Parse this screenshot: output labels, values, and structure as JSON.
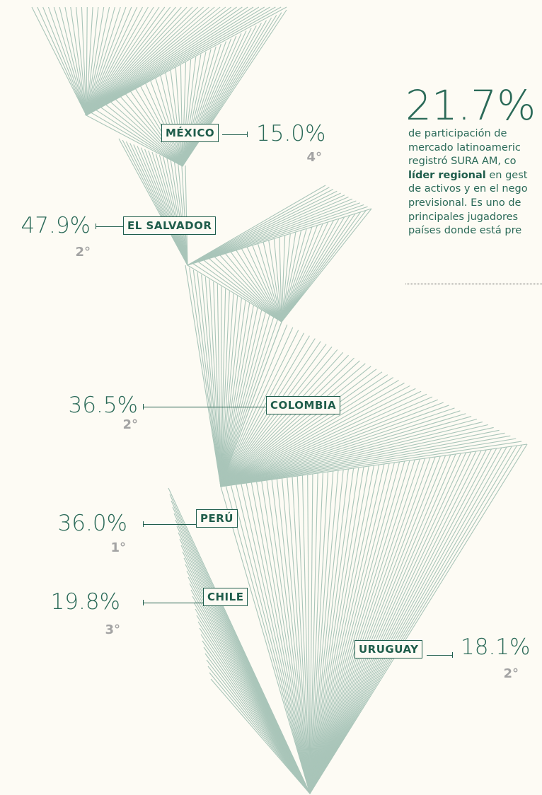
{
  "headline": {
    "value": "21.7%",
    "lines": [
      "de participación de",
      "mercado latinoameric",
      "registró SURA AM, co",
      {
        "strong": "líder regional",
        "rest": " en gest"
      },
      "de activos y en el nego",
      "previsional. Es uno de",
      "principales jugadores",
      "países donde está pre"
    ]
  },
  "countries": [
    {
      "name": "MÉXICO",
      "share": "15.0%",
      "rank": "4°"
    },
    {
      "name": "EL SALVADOR",
      "share": "47.9%",
      "rank": "2°"
    },
    {
      "name": "COLOMBIA",
      "share": "36.5%",
      "rank": "2°"
    },
    {
      "name": "PERÚ",
      "share": "36.0%",
      "rank": "1°"
    },
    {
      "name": "CHILE",
      "share": "19.8%",
      "rank": "3°"
    },
    {
      "name": "URUGUAY",
      "share": "18.1%",
      "rank": "2°"
    }
  ]
}
